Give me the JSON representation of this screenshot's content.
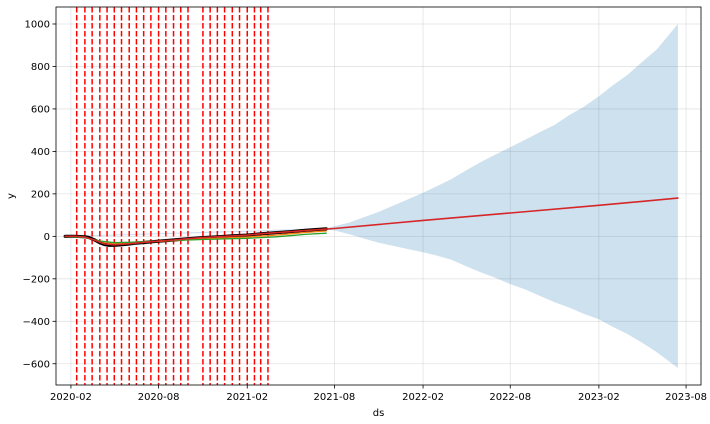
{
  "chart_data": {
    "type": "line",
    "title": "",
    "xlabel": "ds",
    "ylabel": "y",
    "x_ticks": [
      "2020-02",
      "2020-08",
      "2021-02",
      "2021-08",
      "2022-02",
      "2022-08",
      "2023-02",
      "2023-08"
    ],
    "y_ticks": [
      -600,
      -400,
      -200,
      0,
      200,
      400,
      600,
      800,
      1000
    ],
    "xlim": [
      "2020-01-01",
      "2023-09-01"
    ],
    "ylim": [
      -700,
      1080
    ],
    "grid": true,
    "colors": {
      "forecast": "#d62728",
      "interval": "#1f77b4",
      "actual": "#000000",
      "changepoint": "#ff0000",
      "component_a": "#ff7f0e",
      "component_b": "#2ca02c"
    },
    "changepoints": [
      "2020-02-13",
      "2020-03-01",
      "2020-03-16",
      "2020-04-01",
      "2020-04-16",
      "2020-05-01",
      "2020-05-16",
      "2020-06-01",
      "2020-06-16",
      "2020-07-01",
      "2020-07-16",
      "2020-08-01",
      "2020-08-16",
      "2020-09-01",
      "2020-09-16",
      "2020-10-01",
      "2020-11-01",
      "2020-11-16",
      "2020-12-01",
      "2020-12-16",
      "2021-01-01",
      "2021-01-16",
      "2021-02-01",
      "2021-02-16",
      "2021-03-01",
      "2021-03-16"
    ],
    "series": [
      {
        "x": [
          "2020-01-20",
          "2020-02-10",
          "2020-03-01",
          "2020-03-10",
          "2020-03-20",
          "2020-04-01",
          "2020-04-10",
          "2020-04-20",
          "2020-05-01",
          "2020-05-15",
          "2020-06-01",
          "2020-06-15",
          "2020-07-01",
          "2020-08-01",
          "2020-09-01",
          "2020-10-01",
          "2020-11-01",
          "2020-12-01",
          "2021-01-01",
          "2021-02-01",
          "2021-03-01",
          "2021-04-01",
          "2021-05-01",
          "2021-06-01",
          "2021-07-15"
        ],
        "values": [
          0,
          0,
          -2,
          -6,
          -16,
          -30,
          -38,
          -42,
          -42,
          -40,
          -36,
          -32,
          -29,
          -23,
          -17,
          -11,
          -6,
          -2,
          2,
          6,
          12,
          17,
          22,
          28,
          35
        ]
      },
      {
        "x": [
          "2020-01-20",
          "2020-03-01",
          "2020-04-01",
          "2020-05-01",
          "2020-06-01",
          "2020-07-01",
          "2020-08-01",
          "2020-09-01",
          "2020-10-01",
          "2020-11-01",
          "2020-12-01",
          "2021-01-01",
          "2021-02-01",
          "2021-03-01",
          "2021-04-01",
          "2021-05-01",
          "2021-06-01",
          "2021-07-15"
        ],
        "values": [
          0,
          -4,
          -24,
          -34,
          -32,
          -28,
          -24,
          -20,
          -16,
          -12,
          -9,
          -6,
          -3,
          1,
          6,
          12,
          18,
          25
        ]
      },
      {
        "x": [
          "2020-01-20",
          "2020-03-01",
          "2020-04-01",
          "2020-05-01",
          "2020-06-01",
          "2020-07-01",
          "2020-08-01",
          "2020-09-01",
          "2020-10-01",
          "2020-11-01",
          "2020-12-01",
          "2021-01-01",
          "2021-02-01",
          "2021-03-01",
          "2021-04-01",
          "2021-05-01",
          "2021-06-01",
          "2021-07-15"
        ],
        "values": [
          0,
          -6,
          -22,
          -30,
          -28,
          -25,
          -22,
          -19,
          -17,
          -15,
          -13,
          -11,
          -9,
          -6,
          -2,
          3,
          9,
          15
        ]
      },
      {
        "x": [
          "2020-01-20",
          "2020-02-10",
          "2020-03-01",
          "2020-03-20",
          "2020-04-10",
          "2020-05-01",
          "2020-06-01",
          "2020-07-01",
          "2020-08-01",
          "2020-09-01",
          "2020-10-01",
          "2020-11-01",
          "2020-12-01",
          "2021-01-01",
          "2021-02-01",
          "2021-03-01",
          "2021-04-01",
          "2021-05-01",
          "2021-06-01",
          "2021-07-15",
          "2021-08-01",
          "2022-02-01",
          "2022-08-01",
          "2023-02-01",
          "2023-07-15"
        ],
        "values": [
          0,
          0,
          -3,
          -17,
          -35,
          -40,
          -35,
          -28,
          -22,
          -17,
          -11,
          -6,
          -2,
          2,
          6,
          12,
          17,
          22,
          27,
          34,
          37,
          75,
          110,
          146,
          180
        ]
      }
    ],
    "interval": {
      "x": [
        "2020-01-20",
        "2021-07-15",
        "2021-08-01",
        "2021-09-01",
        "2021-10-01",
        "2021-11-01",
        "2021-12-01",
        "2022-01-01",
        "2022-02-01",
        "2022-03-01",
        "2022-04-01",
        "2022-05-01",
        "2022-06-01",
        "2022-07-01",
        "2022-08-01",
        "2022-09-01",
        "2022-10-01",
        "2022-11-01",
        "2022-12-01",
        "2023-01-01",
        "2023-02-01",
        "2023-03-01",
        "2023-04-01",
        "2023-05-01",
        "2023-06-01",
        "2023-07-15"
      ],
      "upper": [
        2,
        38,
        48,
        65,
        90,
        115,
        145,
        175,
        205,
        235,
        270,
        310,
        350,
        385,
        420,
        455,
        490,
        525,
        570,
        610,
        660,
        710,
        760,
        820,
        880,
        1000
      ],
      "lower": [
        -2,
        32,
        28,
        10,
        -10,
        -30,
        -45,
        -60,
        -75,
        -90,
        -110,
        -140,
        -170,
        -195,
        -225,
        -250,
        -280,
        -310,
        -335,
        -365,
        -390,
        -425,
        -460,
        -500,
        -545,
        -620
      ]
    }
  }
}
